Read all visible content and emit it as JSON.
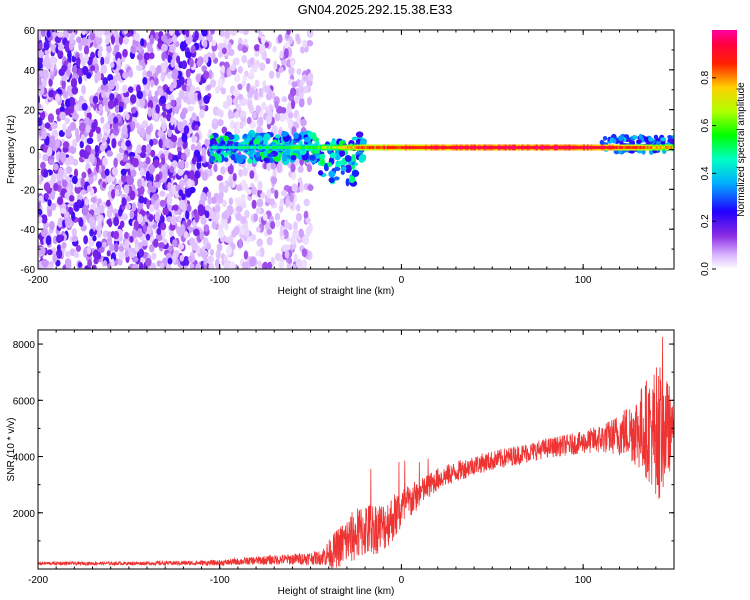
{
  "title": "GN04.2025.292.15.38.E33",
  "chart_data": [
    {
      "type": "heatmap",
      "title": "GN04.2025.292.15.38.E33",
      "xlabel": "Height of straight line (km)",
      "ylabel": "Frequency (Hz)",
      "xlim": [
        -200,
        150
      ],
      "ylim": [
        -60,
        60
      ],
      "x_ticks": [
        -200,
        -100,
        0,
        100
      ],
      "y_ticks": [
        -60,
        -40,
        -20,
        0,
        20,
        40,
        60
      ],
      "colorbar": {
        "label": "Normalized spectral amplitude",
        "range": [
          0,
          1
        ],
        "ticks": [
          0.0,
          0.2,
          0.4,
          0.6,
          0.8
        ]
      },
      "features": {
        "noise_region_x": [
          -200,
          -50
        ],
        "dense_noise_x": [
          -200,
          -105
        ],
        "signal_line_frequency_hz": 1,
        "signal_line_x": [
          -105,
          150
        ],
        "signal_amplitude_profile": [
          {
            "x": -100,
            "amp": 0.45
          },
          {
            "x": -80,
            "amp": 0.5
          },
          {
            "x": -60,
            "amp": 0.55
          },
          {
            "x": -40,
            "amp": 0.65
          },
          {
            "x": -20,
            "amp": 0.85
          },
          {
            "x": 0,
            "amp": 0.9
          },
          {
            "x": 50,
            "amp": 0.95
          },
          {
            "x": 100,
            "amp": 0.95
          },
          {
            "x": 130,
            "amp": 0.85
          },
          {
            "x": 150,
            "amp": 0.75
          }
        ]
      },
      "grid": false
    },
    {
      "type": "line",
      "xlabel": "Height of straight line (km)",
      "ylabel": "SNR (10 * v/v)",
      "xlim": [
        -200,
        150
      ],
      "ylim": [
        0,
        8500
      ],
      "x_ticks": [
        -200,
        -100,
        0,
        100
      ],
      "y_ticks": [
        2000,
        4000,
        6000,
        8000
      ],
      "color": "#ee3333",
      "envelope": [
        {
          "x": -200,
          "mean": 200,
          "spread": 60
        },
        {
          "x": -150,
          "mean": 200,
          "spread": 60
        },
        {
          "x": -100,
          "mean": 220,
          "spread": 100
        },
        {
          "x": -80,
          "mean": 300,
          "spread": 150
        },
        {
          "x": -60,
          "mean": 350,
          "spread": 200
        },
        {
          "x": -45,
          "mean": 400,
          "spread": 250
        },
        {
          "x": -38,
          "mean": 600,
          "spread": 600
        },
        {
          "x": -30,
          "mean": 1000,
          "spread": 900
        },
        {
          "x": -20,
          "mean": 1400,
          "spread": 1000
        },
        {
          "x": -10,
          "mean": 1500,
          "spread": 900
        },
        {
          "x": 0,
          "mean": 2100,
          "spread": 800
        },
        {
          "x": 10,
          "mean": 2700,
          "spread": 500
        },
        {
          "x": 20,
          "mean": 3200,
          "spread": 400
        },
        {
          "x": 40,
          "mean": 3700,
          "spread": 350
        },
        {
          "x": 60,
          "mean": 4000,
          "spread": 350
        },
        {
          "x": 80,
          "mean": 4300,
          "spread": 350
        },
        {
          "x": 100,
          "mean": 4500,
          "spread": 400
        },
        {
          "x": 115,
          "mean": 4700,
          "spread": 600
        },
        {
          "x": 125,
          "mean": 4900,
          "spread": 1000
        },
        {
          "x": 135,
          "mean": 5000,
          "spread": 1800
        },
        {
          "x": 142,
          "mean": 4900,
          "spread": 2500
        },
        {
          "x": 148,
          "mean": 5000,
          "spread": 1500
        },
        {
          "x": 150,
          "mean": 5000,
          "spread": 300
        }
      ],
      "grid": false
    }
  ]
}
